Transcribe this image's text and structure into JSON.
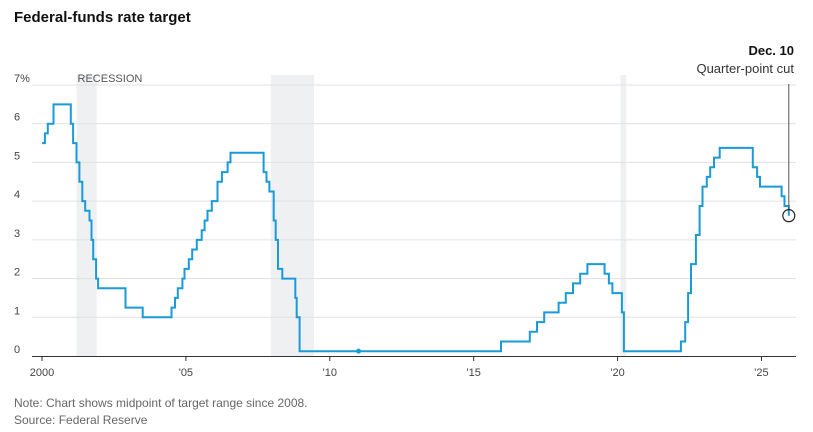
{
  "title": "Federal-funds rate target",
  "note": "Note: Chart shows midpoint of target range since 2008.",
  "source": "Source: Federal Reserve",
  "colors": {
    "line": "#1a9bd7",
    "recession": "#eef0f2",
    "grid": "#e1e1e1",
    "axis": "#333333"
  },
  "chart_data": {
    "type": "line",
    "title": "Federal-funds rate target",
    "x_domain": [
      2000,
      2026.2
    ],
    "ylim": [
      0,
      7
    ],
    "y_ticks": [
      0,
      1,
      2,
      3,
      4,
      5,
      6,
      7
    ],
    "y_tick_labels": [
      "0",
      "1",
      "2",
      "3",
      "4",
      "5",
      "6",
      "7%"
    ],
    "x_ticks": [
      2000,
      2005,
      2010,
      2015,
      2020,
      2025
    ],
    "x_tick_labels": [
      "2000",
      "'05",
      "'10",
      "'15",
      "'20",
      "'25"
    ],
    "recession_label": "RECESSION",
    "recessions": [
      [
        2001.2,
        2001.9
      ],
      [
        2007.95,
        2009.45
      ],
      [
        2020.1,
        2020.3
      ]
    ],
    "annotation": {
      "x": 2025.95,
      "y": 3.625,
      "date_label": "Dec. 10",
      "text": "Quarter-point cut"
    },
    "series": [
      {
        "step": true,
        "points": [
          [
            2000.0,
            5.5
          ],
          [
            2000.1,
            5.75
          ],
          [
            2000.2,
            6.0
          ],
          [
            2000.4,
            6.5
          ],
          [
            2001.0,
            6.0
          ],
          [
            2001.08,
            5.5
          ],
          [
            2001.2,
            5.0
          ],
          [
            2001.3,
            4.5
          ],
          [
            2001.4,
            4.0
          ],
          [
            2001.5,
            3.75
          ],
          [
            2001.65,
            3.5
          ],
          [
            2001.72,
            3.0
          ],
          [
            2001.78,
            2.5
          ],
          [
            2001.88,
            2.0
          ],
          [
            2001.95,
            1.75
          ],
          [
            2002.9,
            1.25
          ],
          [
            2003.5,
            1.0
          ],
          [
            2004.5,
            1.25
          ],
          [
            2004.62,
            1.5
          ],
          [
            2004.72,
            1.75
          ],
          [
            2004.88,
            2.0
          ],
          [
            2004.95,
            2.25
          ],
          [
            2005.1,
            2.5
          ],
          [
            2005.22,
            2.75
          ],
          [
            2005.38,
            3.0
          ],
          [
            2005.55,
            3.25
          ],
          [
            2005.65,
            3.5
          ],
          [
            2005.75,
            3.75
          ],
          [
            2005.9,
            4.0
          ],
          [
            2006.1,
            4.5
          ],
          [
            2006.25,
            4.75
          ],
          [
            2006.45,
            5.0
          ],
          [
            2006.55,
            5.25
          ],
          [
            2007.7,
            4.75
          ],
          [
            2007.8,
            4.5
          ],
          [
            2007.9,
            4.25
          ],
          [
            2008.05,
            3.5
          ],
          [
            2008.12,
            3.0
          ],
          [
            2008.2,
            2.25
          ],
          [
            2008.35,
            2.0
          ],
          [
            2008.8,
            1.5
          ],
          [
            2008.85,
            1.0
          ],
          [
            2008.95,
            0.125
          ],
          [
            2015.95,
            0.375
          ],
          [
            2016.95,
            0.625
          ],
          [
            2017.2,
            0.875
          ],
          [
            2017.45,
            1.125
          ],
          [
            2017.95,
            1.375
          ],
          [
            2018.2,
            1.625
          ],
          [
            2018.45,
            1.875
          ],
          [
            2018.7,
            2.125
          ],
          [
            2018.95,
            2.375
          ],
          [
            2019.55,
            2.125
          ],
          [
            2019.7,
            1.875
          ],
          [
            2019.82,
            1.625
          ],
          [
            2020.15,
            1.125
          ],
          [
            2020.22,
            0.125
          ],
          [
            2022.2,
            0.375
          ],
          [
            2022.35,
            0.875
          ],
          [
            2022.45,
            1.625
          ],
          [
            2022.55,
            2.375
          ],
          [
            2022.72,
            3.125
          ],
          [
            2022.85,
            3.875
          ],
          [
            2022.95,
            4.375
          ],
          [
            2023.1,
            4.625
          ],
          [
            2023.22,
            4.875
          ],
          [
            2023.35,
            5.125
          ],
          [
            2023.55,
            5.375
          ],
          [
            2024.7,
            4.875
          ],
          [
            2024.85,
            4.625
          ],
          [
            2024.95,
            4.375
          ],
          [
            2025.7,
            4.125
          ],
          [
            2025.8,
            3.875
          ],
          [
            2025.95,
            3.625
          ]
        ]
      }
    ],
    "markers": [
      [
        2011.0,
        0.125
      ]
    ]
  }
}
